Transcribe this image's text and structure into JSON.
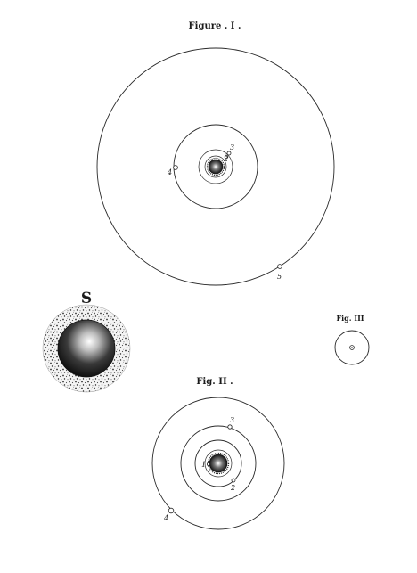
{
  "figure1": {
    "title": "Figure . I .",
    "labels": [
      "2",
      "3",
      "4",
      "5"
    ]
  },
  "figure2": {
    "title": "Fig. II .",
    "labels": [
      "1",
      "2",
      "3",
      "4"
    ]
  },
  "figure3": {
    "title": "Fig. III"
  },
  "sun": {
    "label": "S"
  },
  "colors": {
    "ink": "#2a2a2a",
    "paper": "#ffffff",
    "sun_core": "#1a1a1a"
  }
}
